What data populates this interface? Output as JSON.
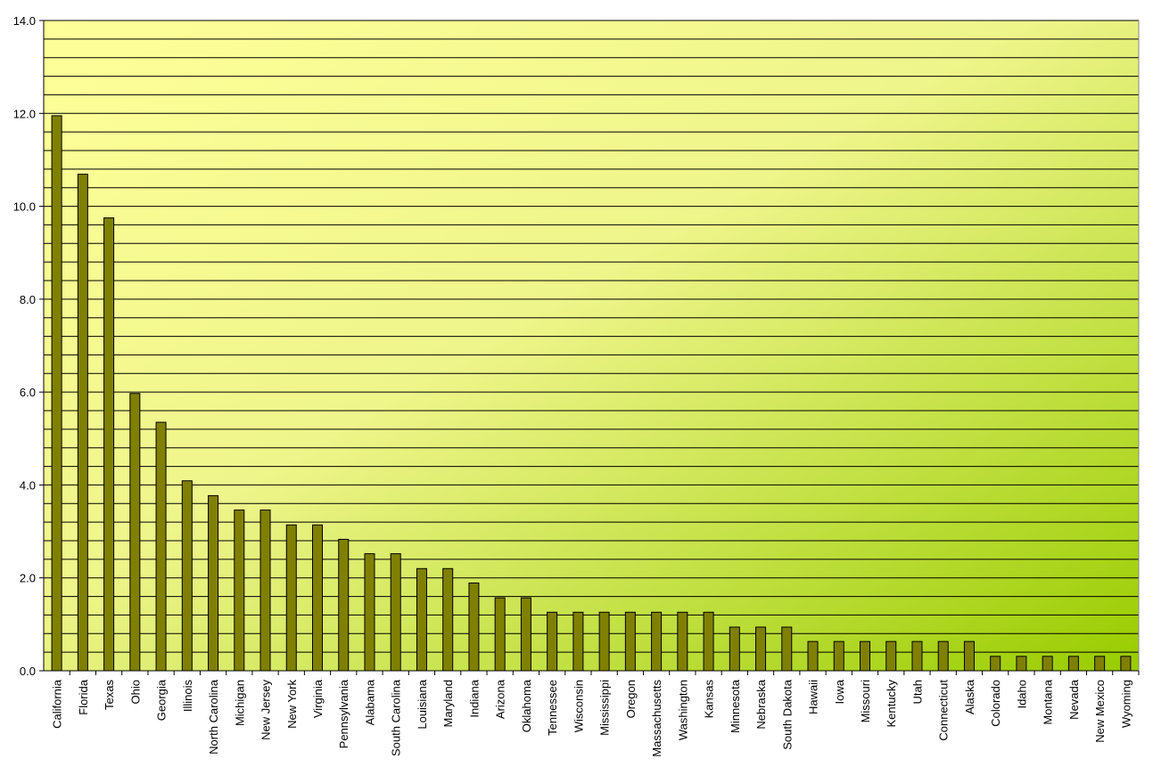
{
  "chart_data": {
    "type": "bar",
    "categories": [
      "California",
      "Florida",
      "Texas",
      "Ohio",
      "Georgia",
      "Illinois",
      "North Carolina",
      "Michigan",
      "New Jersey",
      "New York",
      "Virginia",
      "Pennsylvania",
      "Alabama",
      "South Carolina",
      "Louisiana",
      "Maryland",
      "Indiana",
      "Arizona",
      "Oklahoma",
      "Tennessee",
      "Wisconsin",
      "Mississippi",
      "Oregon",
      "Massachusetts",
      "Washington",
      "Kansas",
      "Minnesota",
      "Nebraska",
      "South Dakota",
      "Hawaii",
      "Iowa",
      "Missouri",
      "Kentucky",
      "Utah",
      "Connecticut",
      "Alaska",
      "Colorado",
      "Idaho",
      "Montana",
      "Nevada",
      "New Mexico",
      "Wyoming"
    ],
    "values": [
      11.95,
      10.69,
      9.75,
      5.97,
      5.35,
      4.09,
      3.77,
      3.46,
      3.46,
      3.14,
      3.14,
      2.83,
      2.52,
      2.52,
      2.2,
      2.2,
      1.89,
      1.57,
      1.57,
      1.26,
      1.26,
      1.26,
      1.26,
      1.26,
      1.26,
      1.26,
      0.94,
      0.94,
      0.94,
      0.63,
      0.63,
      0.63,
      0.63,
      0.63,
      0.63,
      0.63,
      0.31,
      0.31,
      0.31,
      0.31,
      0.31,
      0.31
    ],
    "color": "#808000",
    "ylim": [
      0,
      14
    ],
    "yticks": [
      {
        "value": 0,
        "label": "0.0"
      },
      {
        "value": 2,
        "label": "2.0"
      },
      {
        "value": 4,
        "label": "4.0"
      },
      {
        "value": 6,
        "label": "6.0"
      },
      {
        "value": 8,
        "label": "8.0"
      },
      {
        "value": 10,
        "label": "10.0"
      },
      {
        "value": 12,
        "label": "12.0"
      },
      {
        "value": 14,
        "label": "14.0"
      }
    ],
    "grid_lines": [
      0.4,
      0.8,
      1.2,
      1.6,
      2,
      2.4,
      2.8,
      3.2,
      3.6,
      4,
      4.4,
      4.8,
      5.2,
      5.6,
      6,
      6.4,
      6.8,
      7.2,
      7.6,
      8,
      8.4,
      8.8,
      9.2,
      9.6,
      10,
      10.4,
      10.8,
      11.2,
      11.6,
      12,
      12.4,
      12.8,
      13.2,
      13.6,
      14
    ],
    "grid": true
  }
}
